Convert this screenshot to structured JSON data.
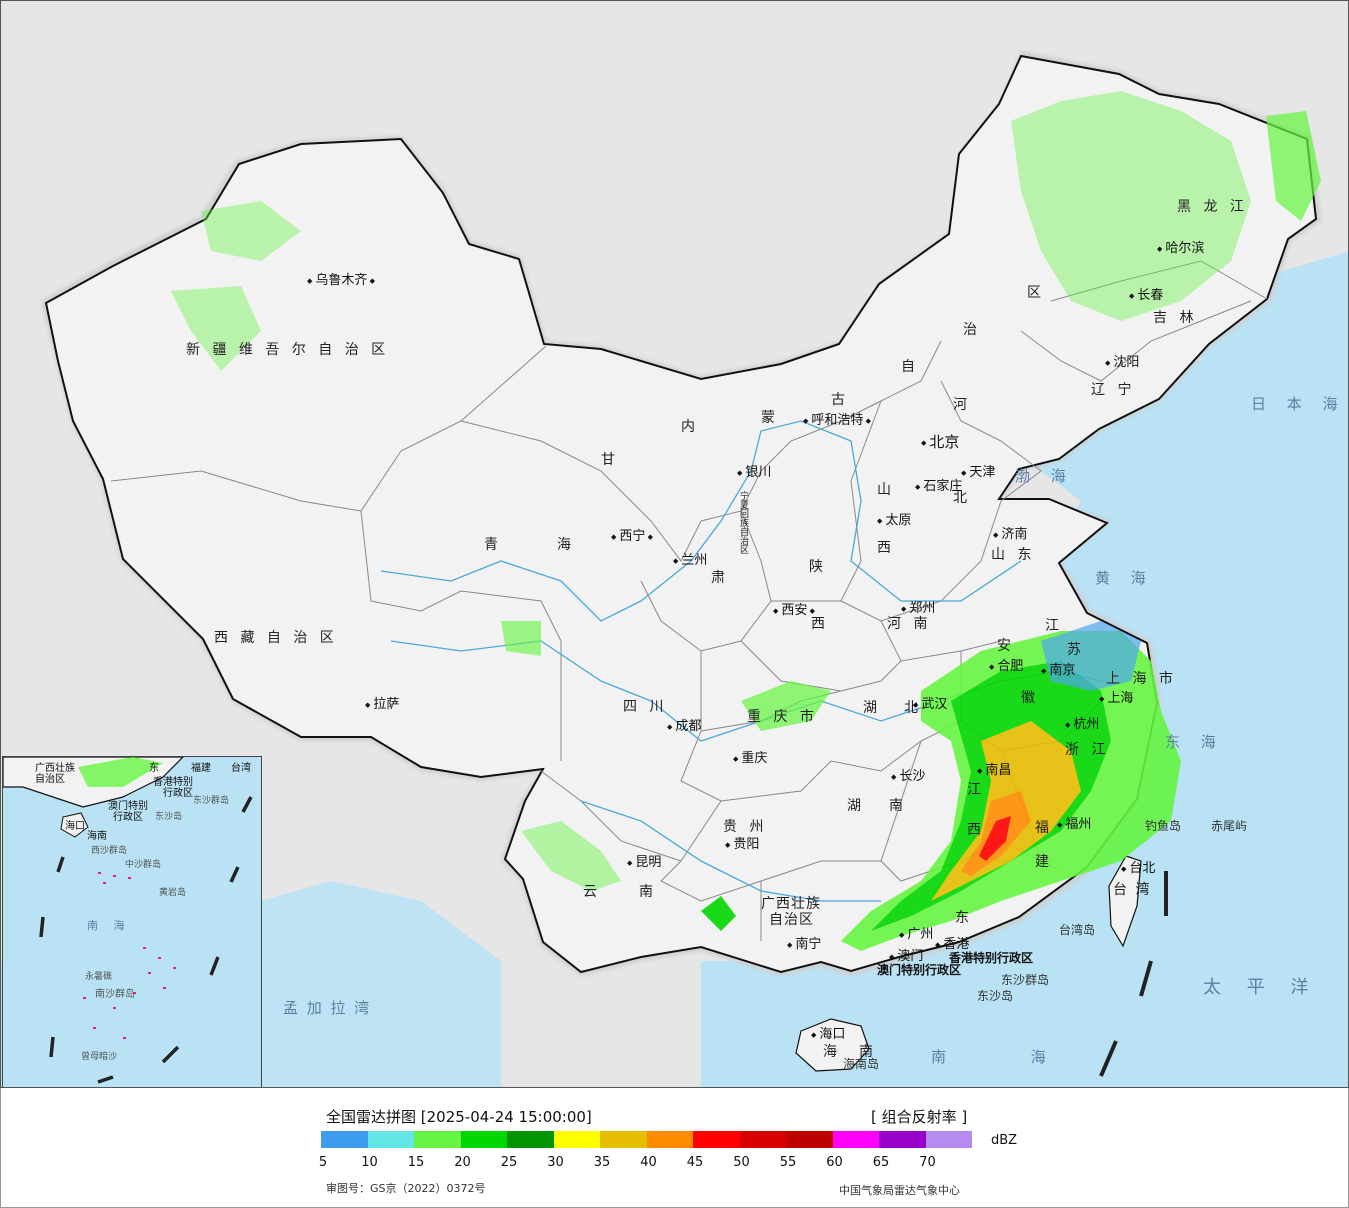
{
  "title": "全国雷达拼图 [2025-04-24 15:00:00]",
  "product": "[ 组合反射率 ]",
  "unit": "dBZ",
  "approval": "审图号：GS京（2022）0372号",
  "publisher": "中国气象局雷达气象中心",
  "colors": {
    "sea": "#b9e2f5",
    "land": "#f2f2f2",
    "outside": "#e6e6e6",
    "border": "#111111",
    "province_border": "#888888",
    "river": "#4aa8d8"
  },
  "legend": {
    "colors": [
      "#3d9cf0",
      "#63e6e6",
      "#66f542",
      "#00d600",
      "#009400",
      "#ffff00",
      "#e6be00",
      "#ff8c00",
      "#ff0000",
      "#d90000",
      "#bf0000",
      "#ff00ff",
      "#9900c8",
      "#b48cf0"
    ],
    "ticks": [
      "5",
      "10",
      "15",
      "20",
      "25",
      "30",
      "35",
      "40",
      "45",
      "50",
      "55",
      "60",
      "65",
      "70"
    ]
  },
  "labels": {
    "provinces": [
      "新 疆 维 吾 尔 自 治 区",
      "西 藏 自 治 区",
      "青",
      "海",
      "甘",
      "肃",
      "内",
      "蒙",
      "古",
      "自",
      "治",
      "区",
      "黑 龙 江",
      "吉 林",
      "辽 宁",
      "河",
      "北",
      "山",
      "西",
      "陕",
      "西",
      "山 东",
      "河 南",
      "四 川",
      "重 庆 市",
      "湖",
      "北",
      "安",
      "徽",
      "江",
      "苏",
      "上 海 市",
      "浙 江",
      "湖",
      "南",
      "江",
      "西",
      "福",
      "建",
      "贵 州",
      "云",
      "南",
      "广西壮族",
      "自治区",
      "东",
      "台 湾",
      "海",
      "南",
      "宁夏回族自治区"
    ],
    "cities": [
      "乌鲁木齐",
      "拉萨",
      "西宁",
      "兰州",
      "银川",
      "呼和浩特",
      "北京",
      "天津",
      "石家庄",
      "太原",
      "济南",
      "西安",
      "郑州",
      "成都",
      "重庆",
      "武汉",
      "合肥",
      "南京",
      "上海",
      "杭州",
      "长沙",
      "南昌",
      "福州",
      "贵阳",
      "昆明",
      "南宁",
      "广州",
      "香港",
      "澳门",
      "台北",
      "沈阳",
      "长春",
      "哈尔滨",
      "海口"
    ],
    "seas": [
      "渤 海",
      "黄 海",
      "东 海",
      "日 本 海",
      "南 海",
      "太 平 洋",
      "孟 加 拉 湾"
    ],
    "islands": [
      "钓鱼岛",
      "赤尾屿",
      "台湾岛",
      "东沙群岛",
      "东沙岛",
      "海南岛"
    ],
    "sar": [
      "香港特别行政区",
      "澳门特别行政区"
    ],
    "inset": {
      "labels": [
        "广西壮族",
        "自治区",
        "东",
        "福建",
        "台湾",
        "香港特别",
        "行政区",
        "澳门特别",
        "行政区",
        "东沙群岛",
        "东沙岛",
        "海口",
        "海南",
        "西沙群岛",
        "中沙群岛",
        "黄岩岛",
        "南 海",
        "永暑礁",
        "南沙群岛",
        "曾母暗沙"
      ]
    }
  }
}
